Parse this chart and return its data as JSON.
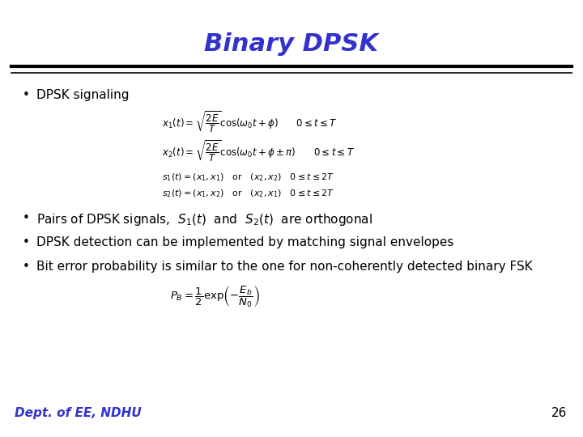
{
  "title": "Binary DPSK",
  "title_color": "#3333CC",
  "title_fontsize": 22,
  "title_style": "italic",
  "title_weight": "bold",
  "bg_color": "#FFFFFF",
  "bullet_points": [
    "DPSK signaling",
    "Pairs of DPSK signals,  $S_1(t)$  and  $S_2(t)$  are orthogonal",
    "DPSK detection can be implemented by matching signal envelopes",
    "Bit error probability is similar to the one for non-coherently detected binary FSK"
  ],
  "footer_text": "Dept. of EE, NDHU",
  "footer_color": "#3333CC",
  "page_number": "26",
  "eq1": "$x_1(t) = \\sqrt{\\dfrac{2E}{T}} \\cos(\\omega_0 t + \\phi) \\qquad 0 \\leq t \\leq T$",
  "eq2": "$x_2(t) = \\sqrt{\\dfrac{2E}{T}} \\cos(\\omega_0 t + \\phi \\pm \\pi) \\qquad 0 \\leq t \\leq T$",
  "eq3": "$s_1(t) = (x_1, x_1) \\quad \\mathrm{or} \\quad (x_2, x_2) \\quad 0 \\leq t \\leq 2T$",
  "eq4": "$s_2(t) = (x_1, x_2) \\quad \\mathrm{or} \\quad (x_2, x_1) \\quad 0 \\leq t \\leq 2T$",
  "eq5": "$P_B = \\dfrac{1}{2} \\exp\\!\\left(-\\dfrac{E_b}{N_0}\\right)$",
  "text_fontsize": 11,
  "eq_fontsize": 8.5,
  "eq_small_fontsize": 8
}
